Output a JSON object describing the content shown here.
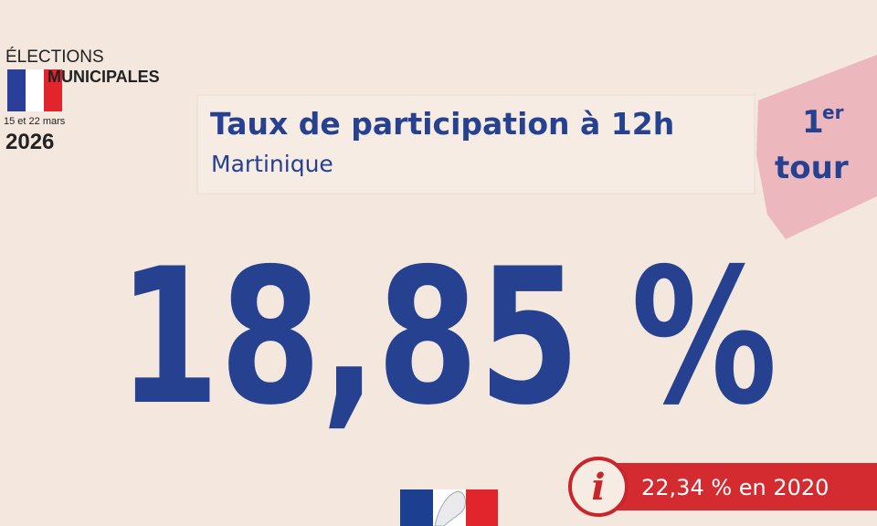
{
  "logo": {
    "line1": "ÉLECTIONS",
    "line2": "MUNICIPALES",
    "dates": "15 et 22 mars",
    "year": "2026"
  },
  "header": {
    "title": "Taux de participation à 12h",
    "subtitle": "Martinique"
  },
  "round": {
    "number": "1",
    "suffix": "er",
    "word": "tour"
  },
  "main_figure": "18,85 %",
  "comparison": {
    "icon": "i",
    "text": "22,34 % en 2020"
  }
}
